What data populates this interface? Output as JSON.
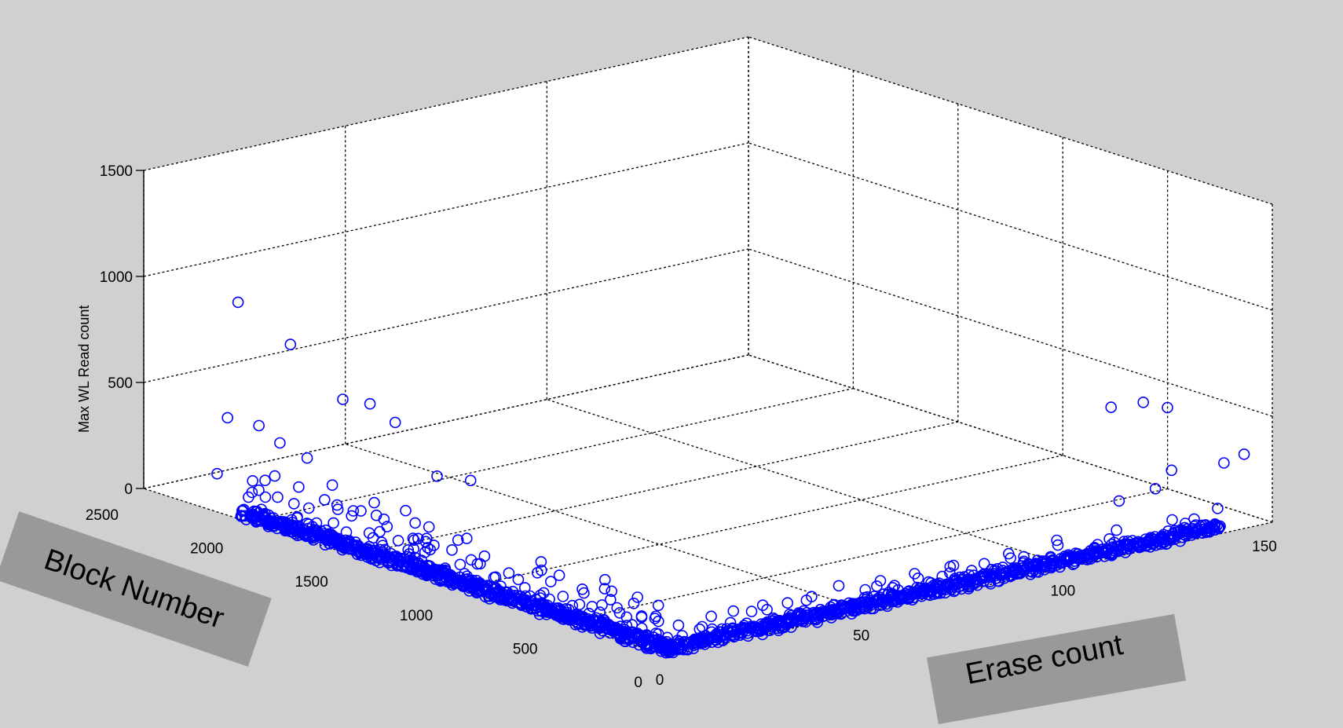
{
  "chart_data": {
    "type": "scatter",
    "projection": "3d",
    "marker": "circle",
    "marker_color": "#0000ff",
    "background_color": "#d0d0d0",
    "axes_color": "#ffffff",
    "grid": true,
    "xlabel": "Erase count",
    "ylabel": "Block Number",
    "zlabel": "Max WL Read count",
    "xlim": [
      0,
      150
    ],
    "ylim": [
      0,
      2500
    ],
    "zlim": [
      0,
      1500
    ],
    "x_ticks": [
      "0",
      "50",
      "100",
      "150"
    ],
    "y_ticks": [
      "0",
      "500",
      "1000",
      "1500",
      "2000",
      "2500"
    ],
    "z_ticks": [
      "0",
      "500",
      "1000",
      "1500"
    ],
    "outliers": [
      {
        "x": 0,
        "y": 2050,
        "z": 1020
      },
      {
        "x": 0,
        "y": 1800,
        "z": 900
      },
      {
        "x": 0,
        "y": 1550,
        "z": 720
      },
      {
        "x": 0,
        "y": 1420,
        "z": 740
      },
      {
        "x": 0,
        "y": 1300,
        "z": 690
      },
      {
        "x": 0,
        "y": 1100,
        "z": 500
      },
      {
        "x": 0,
        "y": 940,
        "z": 530
      },
      {
        "x": 0,
        "y": 2100,
        "z": 460
      },
      {
        "x": 0,
        "y": 1950,
        "z": 470
      },
      {
        "x": 0,
        "y": 1720,
        "z": 390
      },
      {
        "x": 0,
        "y": 1850,
        "z": 420
      },
      {
        "x": 0,
        "y": 1600,
        "z": 300
      },
      {
        "x": 0,
        "y": 1400,
        "z": 280
      },
      {
        "x": 0,
        "y": 1250,
        "z": 290
      },
      {
        "x": 0,
        "y": 1150,
        "z": 190
      },
      {
        "x": 0,
        "y": 1000,
        "z": 230
      },
      {
        "x": 0,
        "y": 2150,
        "z": 180
      },
      {
        "x": 0,
        "y": 1980,
        "z": 200
      },
      {
        "x": 0,
        "y": 1760,
        "z": 240
      },
      {
        "x": 0,
        "y": 1500,
        "z": 210
      },
      {
        "x": 38,
        "y": 0,
        "z": 40
      },
      {
        "x": 110,
        "y": 0,
        "z": 710
      },
      {
        "x": 118,
        "y": 0,
        "z": 700
      },
      {
        "x": 124,
        "y": 0,
        "z": 650
      },
      {
        "x": 112,
        "y": 0,
        "z": 260
      },
      {
        "x": 121,
        "y": 0,
        "z": 280
      },
      {
        "x": 125,
        "y": 0,
        "z": 350
      },
      {
        "x": 138,
        "y": 0,
        "z": 330
      },
      {
        "x": 143,
        "y": 0,
        "z": 350
      }
    ]
  }
}
